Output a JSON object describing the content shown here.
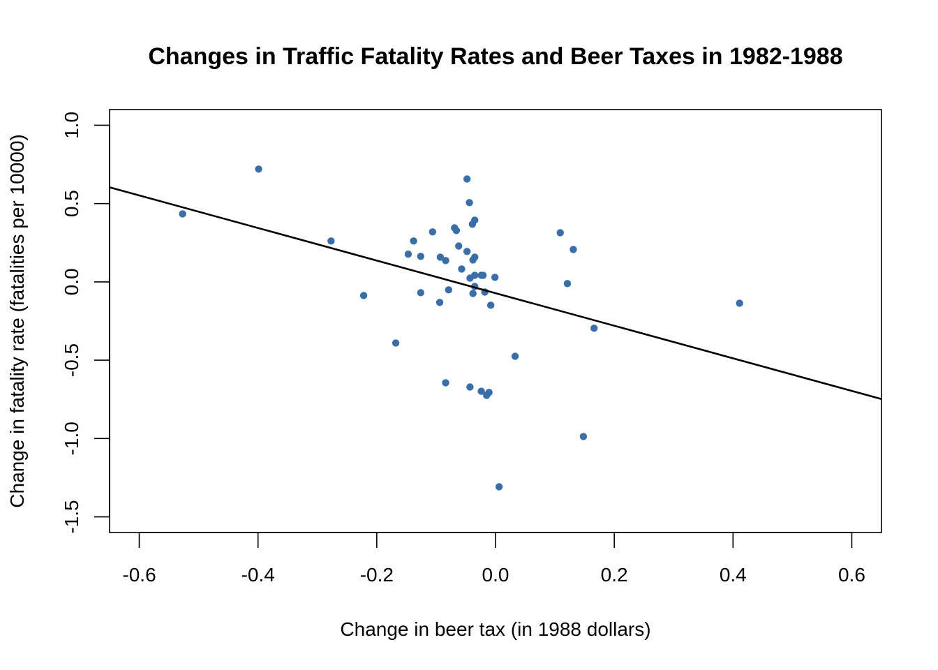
{
  "chart_data": {
    "type": "scatter",
    "title": "Changes in Traffic Fatality Rates and Beer Taxes in 1982-1988",
    "xlabel": "Change in beer tax (in 1988 dollars)",
    "ylabel": "Change in fatality rate (fatalities per 10000)",
    "xlim": [
      -0.65,
      0.65
    ],
    "ylim": [
      -1.6,
      1.1
    ],
    "xticks": [
      -0.6,
      -0.4,
      -0.2,
      0.0,
      0.2,
      0.4,
      0.6
    ],
    "xtick_labels": [
      "-0.6",
      "-0.4",
      "-0.2",
      "0.0",
      "0.2",
      "0.4",
      "0.6"
    ],
    "yticks": [
      1.0,
      0.5,
      0.0,
      -0.5,
      -1.0,
      -1.5
    ],
    "ytick_labels": [
      "1.0",
      "0.5",
      "0.0",
      "-0.5",
      "-1.0",
      "-1.5"
    ],
    "grid": false,
    "point_color": "#3a6ea8",
    "line_color": "#000000",
    "regression_line": {
      "intercept": -0.072,
      "slope": -1.04
    },
    "points": [
      {
        "x": -0.527,
        "y": 0.434
      },
      {
        "x": -0.399,
        "y": 0.72
      },
      {
        "x": -0.277,
        "y": 0.261
      },
      {
        "x": -0.222,
        "y": -0.087
      },
      {
        "x": -0.168,
        "y": -0.39
      },
      {
        "x": -0.147,
        "y": 0.177
      },
      {
        "x": -0.138,
        "y": 0.261
      },
      {
        "x": -0.126,
        "y": 0.163
      },
      {
        "x": -0.126,
        "y": -0.069
      },
      {
        "x": -0.106,
        "y": 0.319
      },
      {
        "x": -0.093,
        "y": 0.158
      },
      {
        "x": -0.094,
        "y": -0.131
      },
      {
        "x": -0.084,
        "y": 0.136
      },
      {
        "x": -0.084,
        "y": -0.644
      },
      {
        "x": -0.079,
        "y": -0.051
      },
      {
        "x": -0.069,
        "y": 0.345
      },
      {
        "x": -0.066,
        "y": 0.328
      },
      {
        "x": -0.062,
        "y": 0.229
      },
      {
        "x": -0.057,
        "y": 0.082
      },
      {
        "x": -0.048,
        "y": 0.657
      },
      {
        "x": -0.048,
        "y": 0.194
      },
      {
        "x": -0.044,
        "y": 0.506
      },
      {
        "x": -0.043,
        "y": 0.024
      },
      {
        "x": -0.043,
        "y": -0.671
      },
      {
        "x": -0.039,
        "y": 0.368
      },
      {
        "x": -0.038,
        "y": 0.14
      },
      {
        "x": -0.038,
        "y": -0.074
      },
      {
        "x": -0.035,
        "y": 0.394
      },
      {
        "x": -0.035,
        "y": 0.158
      },
      {
        "x": -0.035,
        "y": 0.042
      },
      {
        "x": -0.035,
        "y": -0.029
      },
      {
        "x": -0.024,
        "y": 0.042
      },
      {
        "x": -0.024,
        "y": -0.698
      },
      {
        "x": -0.021,
        "y": 0.042
      },
      {
        "x": -0.018,
        "y": -0.065
      },
      {
        "x": -0.015,
        "y": -0.724
      },
      {
        "x": -0.011,
        "y": -0.706
      },
      {
        "x": -0.008,
        "y": -0.149
      },
      {
        "x": -0.001,
        "y": 0.029
      },
      {
        "x": 0.006,
        "y": -1.308
      },
      {
        "x": 0.033,
        "y": -0.475
      },
      {
        "x": 0.109,
        "y": 0.314
      },
      {
        "x": 0.121,
        "y": -0.011
      },
      {
        "x": 0.131,
        "y": 0.207
      },
      {
        "x": 0.148,
        "y": -0.987
      },
      {
        "x": 0.166,
        "y": -0.296
      },
      {
        "x": 0.411,
        "y": -0.136
      }
    ]
  }
}
